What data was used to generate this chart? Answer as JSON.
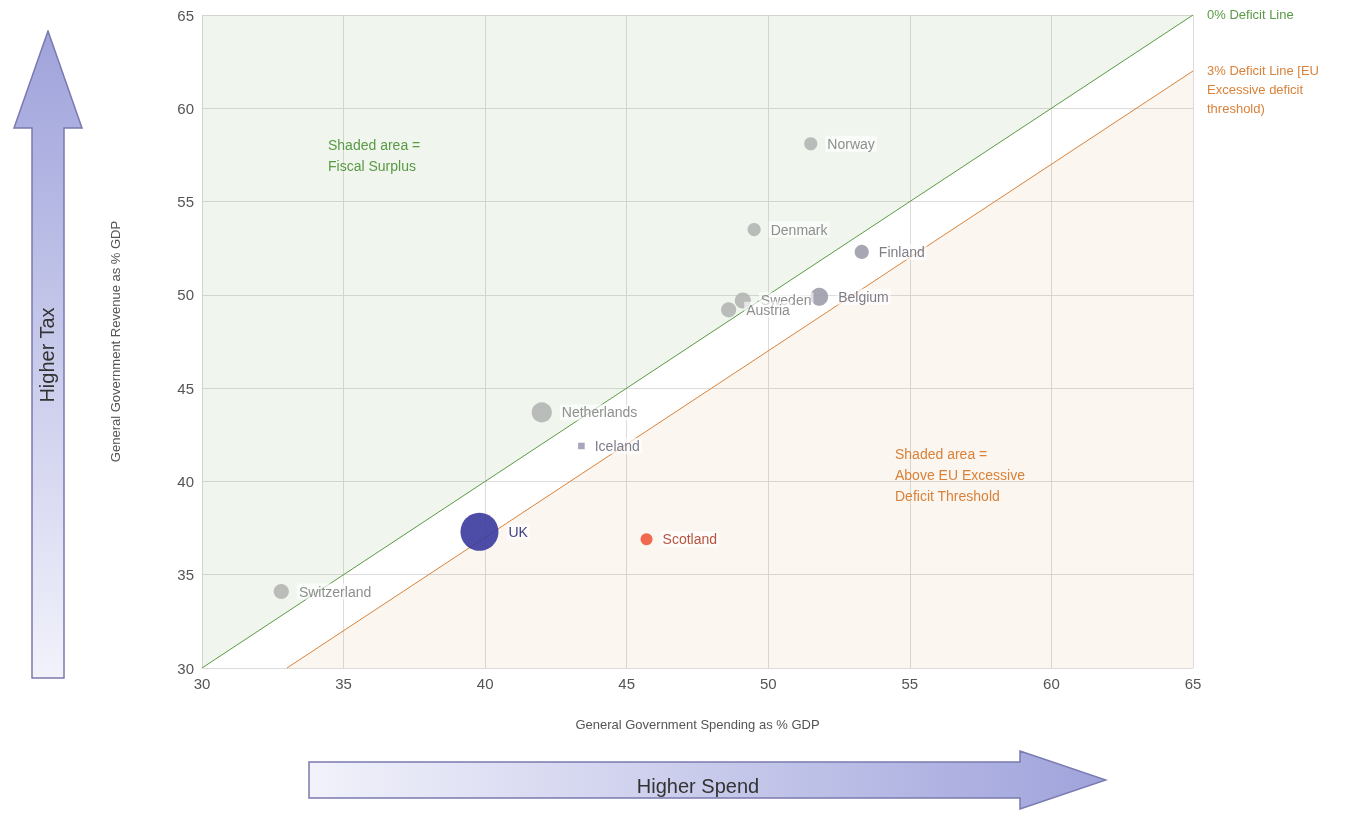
{
  "chart_data": {
    "type": "bubble",
    "xlabel": "General Government Spending as % GDP",
    "ylabel": "General Government Revenue as % GDP",
    "xlim": [
      30,
      65
    ],
    "xticks": [
      30,
      35,
      40,
      45,
      50,
      55,
      60,
      65
    ],
    "ylim": [
      30,
      65
    ],
    "yticks": [
      30,
      35,
      40,
      45,
      50,
      55,
      60,
      65
    ],
    "grid": true,
    "legend": false,
    "marker": "circle",
    "series": [
      {
        "type": "area",
        "name": "0% Deficit Line",
        "color": "#5b9a45",
        "marker": "none",
        "x": [
          30,
          65
        ],
        "values": [
          30,
          65
        ]
      },
      {
        "type": "area",
        "name": "3% Deficit Line [EU Excessive deficit threshold)",
        "color": "#d9823a",
        "marker": "none",
        "x": [
          33,
          65
        ],
        "values": [
          30,
          62
        ]
      },
      {
        "name": "Norway",
        "color": "#b3b6b3",
        "x": [
          51.5
        ],
        "values": [
          58.1
        ],
        "sizes": [
          0.12
        ]
      },
      {
        "name": "Denmark",
        "color": "#b3b6b3",
        "x": [
          49.5
        ],
        "values": [
          53.5
        ],
        "sizes": [
          0.12
        ]
      },
      {
        "name": "Finland",
        "color": "#9d9cab",
        "x": [
          53.3
        ],
        "values": [
          52.3
        ],
        "sizes": [
          0.14
        ]
      },
      {
        "name": "Sweden",
        "color": "#b3b6b3",
        "x": [
          49.1
        ],
        "values": [
          49.7
        ],
        "sizes": [
          0.18
        ]
      },
      {
        "name": "Austria",
        "color": "#b3b6b3",
        "x": [
          48.6
        ],
        "values": [
          49.2
        ],
        "sizes": [
          0.16
        ]
      },
      {
        "name": "Belgium",
        "color": "#9d9cab",
        "x": [
          51.8
        ],
        "values": [
          49.9
        ],
        "sizes": [
          0.22
        ]
      },
      {
        "name": "Netherlands",
        "color": "#b3b6b3",
        "x": [
          42.0
        ],
        "values": [
          43.7
        ],
        "sizes": [
          0.28
        ]
      },
      {
        "name": "Iceland",
        "color": "#9d9cb4",
        "marker": "square",
        "x": [
          43.4
        ],
        "values": [
          41.9
        ],
        "sizes": [
          0.03
        ]
      },
      {
        "name": "UK",
        "color": "#3a3a9e",
        "x": [
          39.8
        ],
        "values": [
          37.3
        ],
        "sizes": [
          1
        ]
      },
      {
        "name": "Scotland",
        "color": "#f05a3c",
        "x": [
          45.7
        ],
        "values": [
          36.9
        ],
        "sizes": [
          0.1
        ]
      },
      {
        "name": "Switzerland",
        "color": "#b3b6b3",
        "x": [
          32.8
        ],
        "values": [
          34.1
        ],
        "sizes": [
          0.16
        ]
      }
    ],
    "annotations": [
      "Shaded area =\nFiscal Surplus",
      "Shaded area =\nAbove EU Excessive\nDeficit Threshold",
      "Higher Tax",
      "Higher Spend"
    ]
  }
}
